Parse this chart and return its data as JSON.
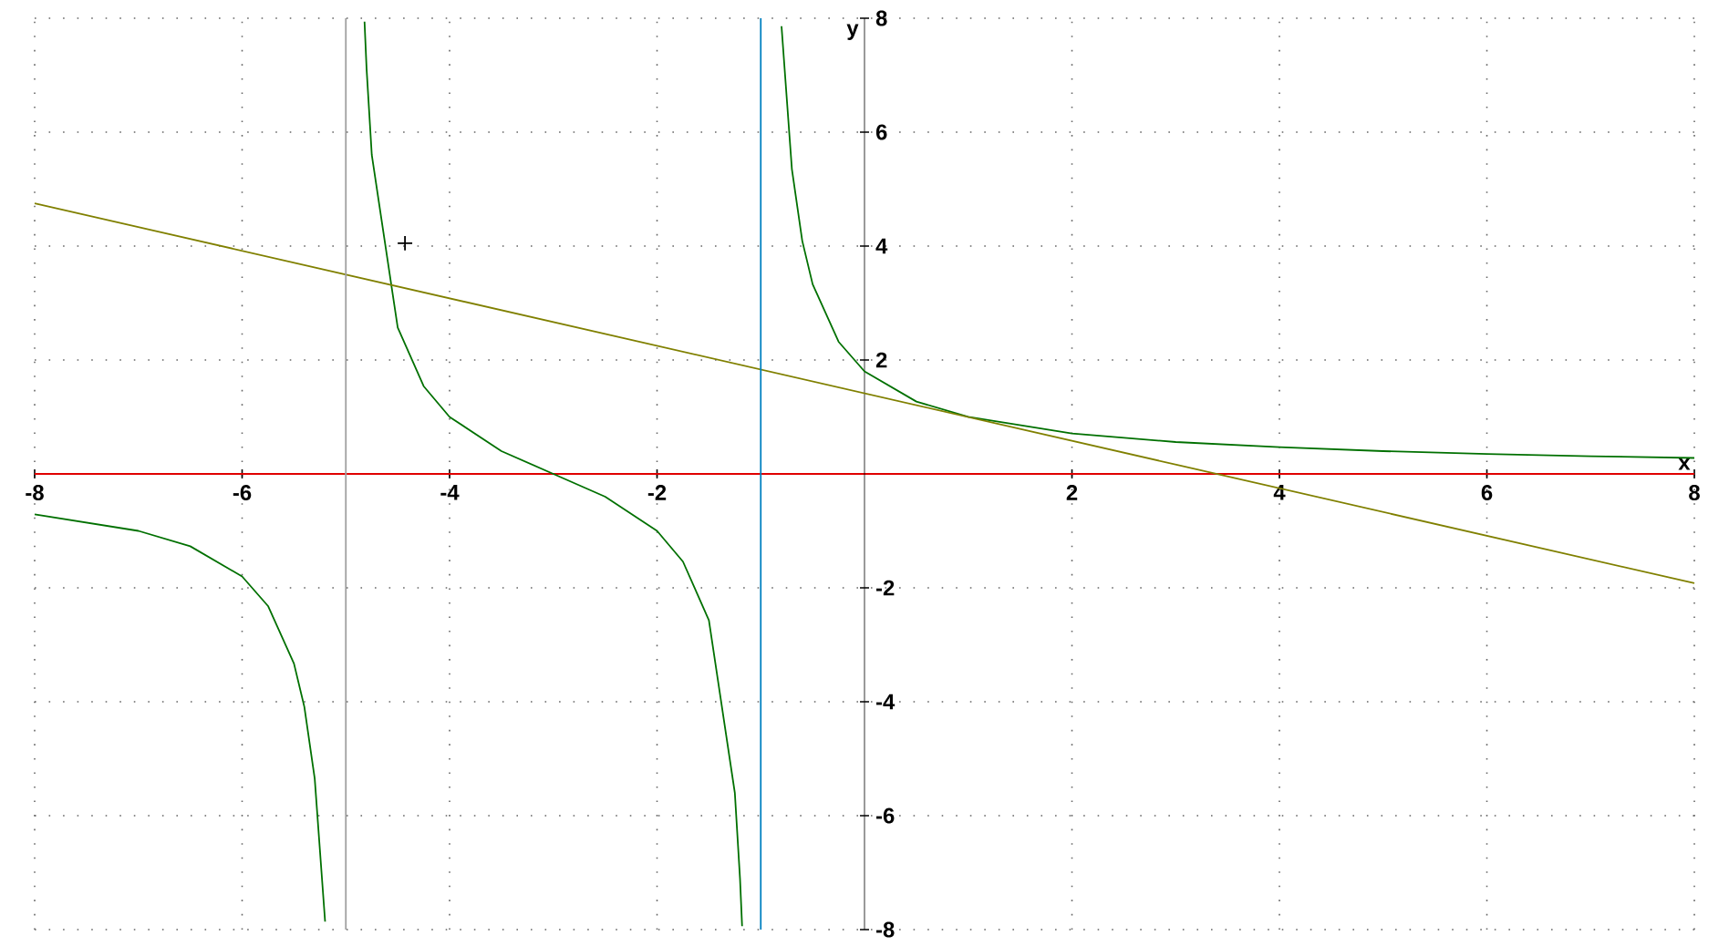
{
  "chart_data": {
    "type": "line",
    "xlabel": "x",
    "ylabel": "y",
    "xlim": [
      -8,
      8
    ],
    "ylim": [
      -8,
      8
    ],
    "xticks": [
      -8,
      -6,
      -4,
      -2,
      2,
      4,
      6,
      8
    ],
    "yticks": [
      -8,
      -6,
      -4,
      -2,
      2,
      4,
      6,
      8
    ],
    "grid": true,
    "marker": "none",
    "series": [
      {
        "color": "#007000",
        "x": [
          -8,
          -7,
          -6.5,
          -6,
          -5.75,
          -5.5,
          -5.4,
          -5.3,
          -5.2,
          null,
          -4.82,
          -4.8,
          -4.75,
          -4.5,
          -4.25,
          -4,
          -3.5,
          -3,
          -2.5,
          -2,
          -1.75,
          -1.5,
          -1.25,
          -1.2,
          -1.18,
          null,
          -0.8,
          -0.7,
          -0.6,
          -0.5,
          -0.25,
          0,
          0.5,
          1,
          2,
          3,
          4,
          5,
          6,
          7,
          8
        ],
        "values": [
          -0.71,
          -1.0,
          -1.27,
          -1.8,
          -2.32,
          -3.33,
          -4.09,
          -5.35,
          -7.86,
          null,
          7.94,
          7.11,
          5.6,
          2.57,
          1.54,
          1.0,
          0.4,
          0,
          -0.4,
          -1.0,
          -1.54,
          -2.57,
          -5.6,
          -7.11,
          -7.94,
          null,
          7.86,
          5.35,
          4.09,
          3.33,
          2.32,
          1.8,
          1.27,
          1.0,
          0.71,
          0.56,
          0.47,
          0.4,
          0.35,
          0.31,
          0.28
        ]
      },
      {
        "color": "#808000",
        "x": [
          -8,
          8
        ],
        "values": [
          4.75,
          -1.92
        ]
      },
      {
        "type": "scatter",
        "marker": "cross",
        "color": "#000000",
        "x": [
          -4.43
        ],
        "values": [
          4.05
        ]
      }
    ],
    "ref_lines": [
      {
        "axis": "x",
        "value": -5,
        "color": "#a0a0a0"
      },
      {
        "axis": "x",
        "value": -1,
        "color": "#0080c0"
      }
    ]
  }
}
